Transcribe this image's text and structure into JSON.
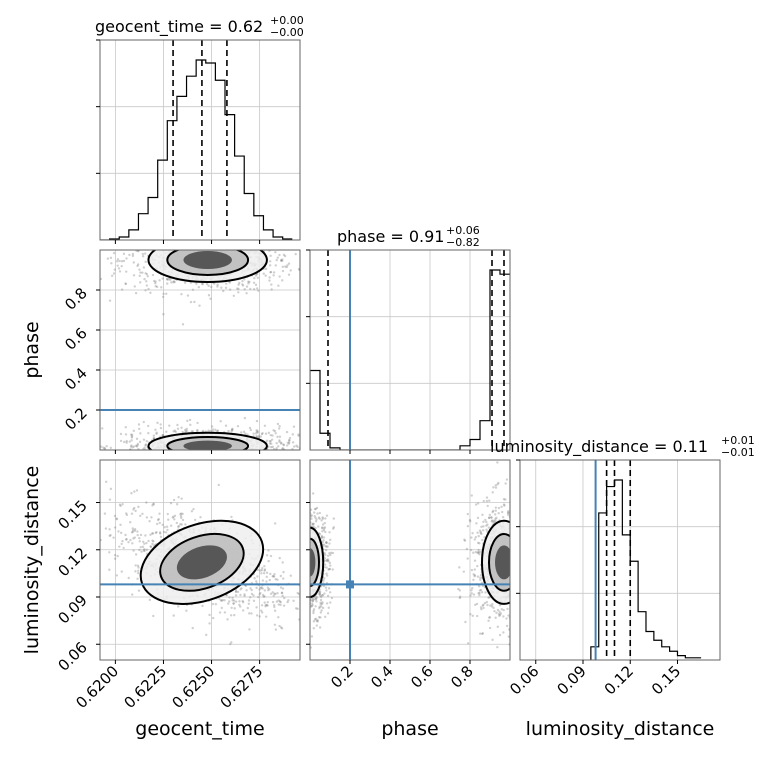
{
  "chart_data": {
    "type": "corner",
    "parameters": [
      "geocent_time",
      "phase",
      "luminosity_distance"
    ],
    "axis_labels": {
      "geocent_time": "geocent_time",
      "phase": "phase",
      "luminosity_distance": "luminosity_distance"
    },
    "titles": [
      {
        "param": "geocent_time",
        "text": "geocent_time = 0.62",
        "plus": "+0.00",
        "minus": "−0.00"
      },
      {
        "param": "phase",
        "text": "phase = 0.91",
        "plus": "+0.06",
        "minus": "−0.82"
      },
      {
        "param": "luminosity_distance",
        "text": "luminosity_distance = 0.11",
        "plus": "+0.01",
        "minus": "−0.01"
      }
    ],
    "ranges": {
      "geocent_time": [
        0.6192,
        0.6296
      ],
      "phase": [
        0.0,
        1.0
      ],
      "luminosity_distance": [
        0.05,
        0.177
      ]
    },
    "ticks": {
      "geocent_time": {
        "values": [
          0.62,
          0.6225,
          0.625,
          0.6275
        ],
        "labels": [
          "0.6200",
          "0.6225",
          "0.6250",
          "0.6275"
        ]
      },
      "phase": {
        "values": [
          0.2,
          0.4,
          0.6,
          0.8
        ],
        "labels": [
          "0.2",
          "0.4",
          "0.6",
          "0.8"
        ]
      },
      "luminosity_distance": {
        "values": [
          0.06,
          0.09,
          0.12,
          0.15
        ],
        "labels": [
          "0.06",
          "0.09",
          "0.12",
          "0.15"
        ]
      }
    },
    "truths": {
      "phase": 0.2,
      "luminosity_distance": 0.098
    },
    "truth_color": "#4682b4",
    "quantiles": {
      "geocent_time": [
        0.623,
        0.6245,
        0.6258
      ],
      "phase": [
        0.09,
        0.91,
        0.97
      ],
      "luminosity_distance": [
        0.105,
        0.11,
        0.12
      ]
    },
    "histograms": {
      "geocent_time": {
        "bin_edges": [
          0.6192,
          0.6197,
          0.6202,
          0.6207,
          0.6212,
          0.6217,
          0.6222,
          0.6227,
          0.6232,
          0.6237,
          0.6242,
          0.6247,
          0.6252,
          0.6257,
          0.6262,
          0.6267,
          0.6272,
          0.6277,
          0.6282,
          0.6287,
          0.6292
        ],
        "counts": [
          0,
          1,
          3,
          10,
          26,
          42,
          79,
          118,
          142,
          162,
          178,
          175,
          158,
          124,
          83,
          46,
          24,
          10,
          3,
          1
        ]
      },
      "phase": {
        "bin_edges": [
          0.0,
          0.05,
          0.1,
          0.15,
          0.2,
          0.25,
          0.3,
          0.35,
          0.4,
          0.45,
          0.5,
          0.55,
          0.6,
          0.65,
          0.7,
          0.75,
          0.8,
          0.85,
          0.9,
          0.95,
          1.0
        ],
        "counts": [
          38,
          8,
          1,
          0,
          0,
          0,
          0,
          0,
          0,
          0,
          0,
          0,
          0,
          0,
          0,
          2,
          5,
          14,
          86,
          84
        ]
      },
      "luminosity_distance": {
        "bin_edges": [
          0.095,
          0.1,
          0.105,
          0.11,
          0.115,
          0.12,
          0.125,
          0.13,
          0.135,
          0.14,
          0.145,
          0.15,
          0.155,
          0.16,
          0.165
        ],
        "counts": [
          6,
          67,
          79,
          82,
          57,
          45,
          22,
          13,
          9,
          6,
          4,
          2,
          1,
          1
        ]
      }
    },
    "density_2d": [
      {
        "x": "geocent_time",
        "y": "phase",
        "modes": [
          {
            "x": 0.6248,
            "y": 0.95,
            "sx": 0.0014,
            "sy": 0.05,
            "rho": 0.0
          },
          {
            "x": 0.6248,
            "y": 0.02,
            "sx": 0.0014,
            "sy": 0.03,
            "rho": 0.0
          }
        ]
      },
      {
        "x": "geocent_time",
        "y": "luminosity_distance",
        "modes": [
          {
            "x": 0.6245,
            "y": 0.112,
            "sx": 0.0015,
            "sy": 0.011,
            "rho": -0.55
          }
        ]
      },
      {
        "x": "phase",
        "y": "luminosity_distance",
        "modes": [
          {
            "x": 0.97,
            "y": 0.112,
            "sx": 0.05,
            "sy": 0.012,
            "rho": 0.0
          },
          {
            "x": 0.0,
            "y": 0.112,
            "sx": 0.03,
            "sy": 0.01,
            "rho": 0.0
          }
        ]
      }
    ],
    "grid": true
  }
}
